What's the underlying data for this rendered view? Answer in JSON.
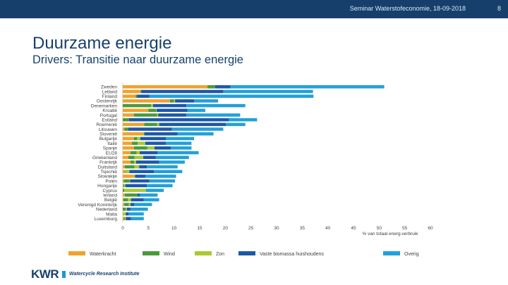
{
  "header": {
    "text": "Seminar Waterstofeconomie, 18-09-2018",
    "slide_number": "8"
  },
  "title": "Duurzame energie",
  "subtitle": "Drivers: Transitie naar duurzame energie",
  "logo": {
    "brand": "KWR",
    "tagline": "Watercycle Research Institute"
  },
  "chart_data": {
    "type": "bar",
    "orientation": "horizontal",
    "stacked": true,
    "xlabel": "% van totaal energ.verbruik",
    "xlim": [
      0,
      60
    ],
    "xticks": [
      0,
      5,
      10,
      15,
      20,
      25,
      30,
      35,
      40,
      45,
      50,
      55,
      60
    ],
    "categories": [
      "Zweden",
      "Letland",
      "Finland",
      "Oostenrijk",
      "Denemarken",
      "Kroatië",
      "Portugal",
      "Estland",
      "Roemenië",
      "Litouwen",
      "Slovenië",
      "Bulgarije",
      "Italië",
      "Spanje",
      "EU28",
      "Griekenland",
      "Frankrijk",
      "Duitsland",
      "Tsjechië",
      "Slowakije",
      "Polen",
      "Hongarije",
      "Cyprus",
      "Ierland",
      "België",
      "Verenigd Koninkrijk",
      "Nederland",
      "Malta",
      "Luxemburg"
    ],
    "series": [
      {
        "name": "Waterkracht",
        "color": "#f0a22c",
        "values": [
          16.5,
          3.5,
          2.5,
          9.2,
          0,
          5,
          2.2,
          0,
          4.2,
          0.3,
          3.8,
          2.2,
          1.8,
          2.2,
          1.5,
          1.1,
          1.5,
          0.4,
          0.5,
          2.2,
          0.2,
          0.1,
          0,
          0.4,
          0.1,
          0.3,
          0,
          0,
          0.2
        ]
      },
      {
        "name": "Wind",
        "color": "#4a9a39",
        "values": [
          1.5,
          0.1,
          0.3,
          0.8,
          5.5,
          1.5,
          4.5,
          1.2,
          2.5,
          0.8,
          0,
          0.6,
          1.1,
          2.6,
          1.2,
          1.2,
          0.7,
          1.9,
          0.1,
          0,
          1.1,
          0.2,
          0.3,
          2.5,
          0.9,
          0.9,
          0.6,
          0,
          0.2
        ]
      },
      {
        "name": "Zon",
        "color": "#a9c833",
        "values": [
          0,
          0,
          0,
          0.2,
          0.4,
          0.1,
          0.2,
          0,
          0.4,
          0,
          0.4,
          0.6,
          1.5,
          1.4,
          0.6,
          1.7,
          0.4,
          0.9,
          0.7,
          0.2,
          0.1,
          0.2,
          4.2,
          0,
          0.6,
          0.3,
          0.2,
          0.6,
          0.2
        ]
      },
      {
        "name": "Vaste biomassa huishoudens",
        "color": "#1d58a8",
        "values": [
          3,
          16,
          2.4,
          3.7,
          6.5,
          6,
          5.5,
          19.5,
          13,
          8.5,
          6.5,
          5,
          4,
          3.2,
          3.5,
          2.4,
          4.5,
          1.5,
          4.8,
          2,
          3.8,
          4.2,
          0,
          0.4,
          2.5,
          0.7,
          0.7,
          0.5,
          1
        ]
      },
      {
        "name": "Overig",
        "color": "#22a0d9",
        "values": [
          30,
          17.5,
          32,
          4.7,
          11.5,
          3.5,
          10.5,
          5.5,
          3.8,
          10,
          7,
          5.5,
          5,
          4,
          8,
          6.5,
          5,
          6,
          5.5,
          6,
          5,
          5,
          3.5,
          3.5,
          3,
          3.5,
          3.4,
          3,
          2.5
        ]
      }
    ]
  }
}
